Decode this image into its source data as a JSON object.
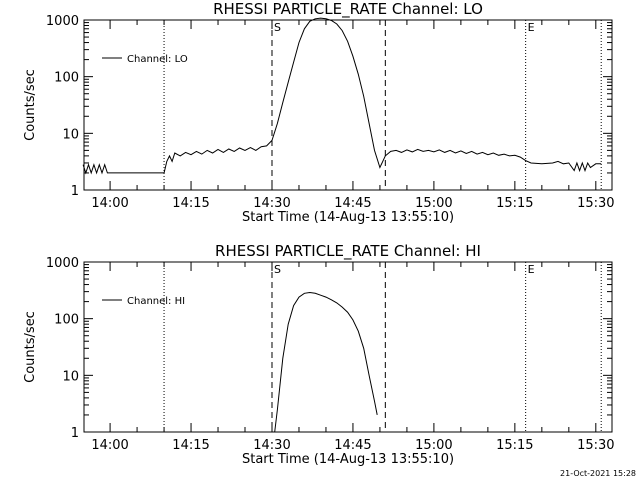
{
  "chart_data": [
    {
      "type": "line",
      "title": "RHESSI PARTICLE_RATE Channel: LO",
      "xlabel": "Start Time (14-Aug-13 13:55:10)",
      "ylabel": "Counts/sec",
      "y_scale": "log",
      "xlim": [
        "13:55:10",
        "15:33:00"
      ],
      "ylim": [
        1,
        1000
      ],
      "xticks": [
        "14:00",
        "14:15",
        "14:30",
        "14:45",
        "15:00",
        "15:15",
        "15:30"
      ],
      "yticks": [
        "1",
        "10",
        "100",
        "1000"
      ],
      "grid": false,
      "legend": {
        "position": "top-left",
        "entries": [
          "Channel: LO"
        ]
      },
      "vertical_markers": {
        "dotted": [
          "14:10",
          "15:17",
          "15:31"
        ],
        "dashed": [
          "14:30",
          "14:51"
        ],
        "labels": [
          {
            "text": "S",
            "x": "14:30"
          },
          {
            "text": "E",
            "x": "15:17"
          }
        ]
      },
      "series": [
        {
          "name": "Channel: LO",
          "points": [
            [
              "13:55",
              2.8
            ],
            [
              "13:55:30",
              2.0
            ],
            [
              "13:56",
              2.8
            ],
            [
              "13:56:30",
              2.0
            ],
            [
              "13:57",
              2.8
            ],
            [
              "13:57:30",
              2.0
            ],
            [
              "13:58",
              2.8
            ],
            [
              "13:58:30",
              2.0
            ],
            [
              "13:59",
              2.8
            ],
            [
              "13:59:30",
              2.0
            ],
            [
              "14:00",
              2.0
            ],
            [
              "14:05",
              2.0
            ],
            [
              "14:09",
              2.0
            ],
            [
              "14:10",
              2.0
            ],
            [
              "14:10:30",
              3.2
            ],
            [
              "14:11",
              4.0
            ],
            [
              "14:11:30",
              3.2
            ],
            [
              "14:12",
              4.5
            ],
            [
              "14:13",
              4.0
            ],
            [
              "14:14",
              4.6
            ],
            [
              "14:15",
              4.2
            ],
            [
              "14:16",
              4.8
            ],
            [
              "14:17",
              4.3
            ],
            [
              "14:18",
              5.0
            ],
            [
              "14:19",
              4.5
            ],
            [
              "14:20",
              5.2
            ],
            [
              "14:21",
              4.6
            ],
            [
              "14:22",
              5.3
            ],
            [
              "14:23",
              4.8
            ],
            [
              "14:24",
              5.5
            ],
            [
              "14:25",
              5.0
            ],
            [
              "14:26",
              5.6
            ],
            [
              "14:27",
              5.0
            ],
            [
              "14:28",
              5.8
            ],
            [
              "14:29",
              6.0
            ],
            [
              "14:30",
              7.5
            ],
            [
              "14:31",
              15
            ],
            [
              "14:32",
              35
            ],
            [
              "14:33",
              80
            ],
            [
              "14:34",
              180
            ],
            [
              "14:35",
              400
            ],
            [
              "14:36",
              700
            ],
            [
              "14:37",
              950
            ],
            [
              "14:38",
              1050
            ],
            [
              "14:39",
              1080
            ],
            [
              "14:40",
              1050
            ],
            [
              "14:41",
              980
            ],
            [
              "14:42",
              850
            ],
            [
              "14:43",
              650
            ],
            [
              "14:44",
              420
            ],
            [
              "14:45",
              230
            ],
            [
              "14:46",
              110
            ],
            [
              "14:47",
              45
            ],
            [
              "14:48",
              15
            ],
            [
              "14:49",
              5.0
            ],
            [
              "14:50",
              2.5
            ],
            [
              "14:51",
              4.0
            ],
            [
              "14:52",
              4.8
            ],
            [
              "14:53",
              5.0
            ],
            [
              "14:54",
              4.6
            ],
            [
              "14:55",
              5.1
            ],
            [
              "14:56",
              4.7
            ],
            [
              "14:57",
              5.2
            ],
            [
              "14:58",
              4.8
            ],
            [
              "14:59",
              5.0
            ],
            [
              "15:00",
              4.7
            ],
            [
              "15:01",
              5.1
            ],
            [
              "15:02",
              4.6
            ],
            [
              "15:03",
              5.0
            ],
            [
              "15:04",
              4.5
            ],
            [
              "15:05",
              4.9
            ],
            [
              "15:06",
              4.4
            ],
            [
              "15:07",
              4.8
            ],
            [
              "15:08",
              4.3
            ],
            [
              "15:09",
              4.6
            ],
            [
              "15:10",
              4.2
            ],
            [
              "15:11",
              4.5
            ],
            [
              "15:12",
              4.1
            ],
            [
              "15:13",
              4.3
            ],
            [
              "15:14",
              4.0
            ],
            [
              "15:15",
              4.1
            ],
            [
              "15:16",
              3.8
            ],
            [
              "15:17",
              3.3
            ],
            [
              "15:18",
              3.0
            ],
            [
              "15:20",
              2.9
            ],
            [
              "15:22",
              3.0
            ],
            [
              "15:23",
              3.2
            ],
            [
              "15:24",
              2.9
            ],
            [
              "15:25",
              3.0
            ],
            [
              "15:26",
              2.2
            ],
            [
              "15:26:30",
              3.0
            ],
            [
              "15:27",
              2.2
            ],
            [
              "15:27:30",
              3.0
            ],
            [
              "15:28",
              2.2
            ],
            [
              "15:28:30",
              3.0
            ],
            [
              "15:29",
              2.5
            ],
            [
              "15:30",
              2.9
            ],
            [
              "15:31",
              2.9
            ]
          ]
        }
      ]
    },
    {
      "type": "line",
      "title": "RHESSI PARTICLE_RATE Channel: HI",
      "xlabel": "Start Time (14-Aug-13 13:55:10)",
      "ylabel": "Counts/sec",
      "y_scale": "log",
      "xlim": [
        "13:55:10",
        "15:33:00"
      ],
      "ylim": [
        1,
        1000
      ],
      "xticks": [
        "14:00",
        "14:15",
        "14:30",
        "14:45",
        "15:00",
        "15:15",
        "15:30"
      ],
      "yticks": [
        "1",
        "10",
        "100",
        "1000"
      ],
      "grid": false,
      "legend": {
        "position": "top-left",
        "entries": [
          "Channel: HI"
        ]
      },
      "vertical_markers": {
        "dotted": [
          "14:10",
          "15:17",
          "15:31"
        ],
        "dashed": [
          "14:30",
          "14:51"
        ],
        "labels": [
          {
            "text": "S",
            "x": "14:30"
          },
          {
            "text": "E",
            "x": "15:17"
          }
        ]
      },
      "series": [
        {
          "name": "Channel: HI",
          "points": [
            [
              "14:30:30",
              1.0
            ],
            [
              "14:31",
              2.5
            ],
            [
              "14:32",
              20
            ],
            [
              "14:33",
              80
            ],
            [
              "14:34",
              170
            ],
            [
              "14:35",
              240
            ],
            [
              "14:36",
              280
            ],
            [
              "14:37",
              290
            ],
            [
              "14:38",
              280
            ],
            [
              "14:39",
              260
            ],
            [
              "14:40",
              240
            ],
            [
              "14:41",
              215
            ],
            [
              "14:42",
              190
            ],
            [
              "14:43",
              160
            ],
            [
              "14:44",
              130
            ],
            [
              "14:45",
              95
            ],
            [
              "14:46",
              60
            ],
            [
              "14:47",
              30
            ],
            [
              "14:48",
              10
            ],
            [
              "14:49",
              3.5
            ],
            [
              "14:49:30",
              2.0
            ]
          ]
        }
      ]
    }
  ],
  "footer": {
    "timestamp": "21-Oct-2021 15:28"
  }
}
